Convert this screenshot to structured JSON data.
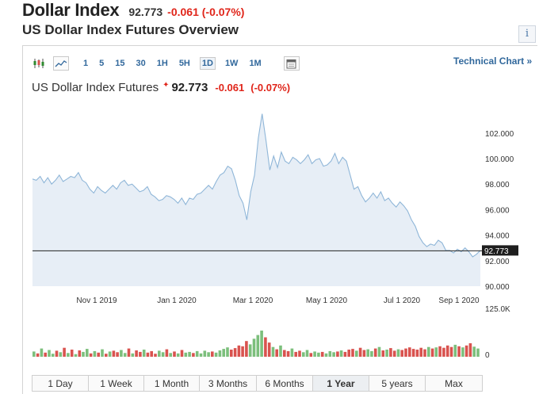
{
  "header": {
    "title": "Dollar Index",
    "price": "92.773",
    "change": "-0.061 (-0.07%)"
  },
  "overview_title": "US Dollar Index Futures Overview",
  "info_icon": {
    "glyph": "i",
    "icon": "info-icon"
  },
  "toolbar": {
    "chart_type_icons": [
      "candlestick-icon",
      "line-chart-icon"
    ],
    "ranges": [
      {
        "label": "1",
        "active": false
      },
      {
        "label": "5",
        "active": false
      },
      {
        "label": "15",
        "active": false
      },
      {
        "label": "30",
        "active": false
      },
      {
        "label": "1H",
        "active": false
      },
      {
        "label": "5H",
        "active": false
      },
      {
        "label": "1D",
        "active": true
      },
      {
        "label": "1W",
        "active": false
      },
      {
        "label": "1M",
        "active": false
      }
    ],
    "calendar_icon": "calendar-icon",
    "technical_chart_link": "Technical Chart »"
  },
  "chart_title": {
    "name": "US Dollar Index Futures",
    "marker": "✦",
    "price": "92.773",
    "change": "-0.061",
    "change_pct": "(-0.07%)"
  },
  "colors": {
    "line": "#8fb6d8",
    "area": "#e7eef6",
    "price_tag_bg": "#1e1e1e",
    "volume_up": "#7cbf7c",
    "volume_down": "#d9534f",
    "negative": "#e0251a",
    "link": "#31689c"
  },
  "chart_data": {
    "type": "area",
    "title": "US Dollar Index Futures",
    "xlabel": "",
    "ylabel": "",
    "x_tick_labels": [
      "Nov 1 2019",
      "Jan 1 2020",
      "Mar 1 2020",
      "May 1 2020",
      "Jul 1 2020",
      "Sep 1 2020"
    ],
    "y_tick_labels": [
      "102.000",
      "100.000",
      "98.000",
      "96.000",
      "94.000",
      "92.000",
      "90.000"
    ],
    "ylim": [
      90,
      103.85
    ],
    "last_price": 92.773,
    "last_price_label": "92.773",
    "grid": false,
    "legend": "none",
    "series": [
      {
        "values": [
          98.4,
          98.3,
          98.6,
          98.1,
          98.5,
          98.0,
          98.3,
          98.7,
          98.2,
          98.4,
          98.6,
          98.5,
          98.9,
          98.3,
          98.1,
          97.6,
          97.3,
          97.8,
          97.5,
          97.3,
          97.6,
          97.9,
          97.6,
          98.1,
          98.3,
          97.9,
          98.0,
          97.7,
          97.4,
          97.5,
          97.8,
          97.2,
          97.0,
          96.7,
          96.8,
          97.1,
          97.0,
          96.8,
          96.5,
          96.9,
          96.4,
          96.9,
          96.8,
          97.2,
          97.3,
          97.6,
          97.9,
          97.6,
          98.2,
          98.7,
          98.9,
          99.4,
          99.2,
          98.3,
          97.1,
          96.5,
          95.2,
          97.4,
          98.7,
          101.6,
          103.5,
          101.4,
          99.1,
          100.2,
          99.3,
          100.5,
          99.8,
          99.6,
          100.1,
          99.9,
          99.6,
          99.9,
          100.3,
          99.6,
          99.9,
          100.0,
          99.4,
          99.5,
          99.8,
          100.4,
          99.6,
          100.1,
          99.8,
          98.7,
          97.6,
          97.8,
          97.1,
          96.6,
          96.9,
          97.3,
          96.9,
          97.4,
          96.7,
          96.9,
          96.5,
          96.2,
          96.6,
          96.3,
          95.9,
          95.2,
          94.7,
          93.9,
          93.4,
          93.1,
          93.3,
          93.2,
          93.6,
          93.4,
          92.8,
          92.8,
          92.6,
          92.9,
          92.7,
          93.0,
          92.7,
          92.3,
          92.5,
          92.8
        ]
      }
    ],
    "volume": {
      "ylim": [
        0,
        125000
      ],
      "y_tick_labels": [
        "125.0K",
        "0"
      ],
      "values": [
        14000,
        9000,
        22000,
        11000,
        18000,
        8000,
        16000,
        12000,
        24000,
        10000,
        19000,
        7000,
        17000,
        13000,
        21000,
        9000,
        15000,
        11000,
        20000,
        8000,
        14000,
        16000,
        12000,
        18000,
        10000,
        22000,
        9000,
        17000,
        13000,
        19000,
        11000,
        15000,
        8000,
        16000,
        12000,
        20000,
        10000,
        14000,
        9000,
        18000,
        11000,
        13000,
        10000,
        15000,
        9000,
        16000,
        12000,
        14000,
        11000,
        17000,
        21000,
        25000,
        19000,
        23000,
        30000,
        28000,
        42000,
        33000,
        48000,
        58000,
        70000,
        52000,
        38000,
        26000,
        20000,
        30000,
        18000,
        15000,
        22000,
        13000,
        16000,
        12000,
        18000,
        10000,
        14000,
        11000,
        13000,
        9000,
        15000,
        12000,
        14000,
        17000,
        13000,
        19000,
        21000,
        16000,
        24000,
        18000,
        20000,
        15000,
        22000,
        26000,
        17000,
        19000,
        23000,
        16000,
        20000,
        18000,
        22000,
        25000,
        21000,
        19000,
        24000,
        20000,
        26000,
        22000,
        25000,
        28000,
        24000,
        30000,
        26000,
        32000,
        28000,
        25000,
        30000,
        36000,
        27000,
        22000
      ],
      "directions": [
        "up",
        "down",
        "up",
        "down",
        "up",
        "up",
        "down",
        "up",
        "down",
        "up",
        "down",
        "up",
        "down",
        "up",
        "up",
        "down",
        "up",
        "down",
        "up",
        "down",
        "up",
        "down",
        "down",
        "up",
        "up",
        "down",
        "up",
        "down",
        "down",
        "up",
        "down",
        "down",
        "down",
        "up",
        "up",
        "down",
        "up",
        "down",
        "up",
        "down",
        "up",
        "up",
        "down",
        "up",
        "up",
        "up",
        "up",
        "down",
        "up",
        "up",
        "up",
        "up",
        "down",
        "down",
        "down",
        "down",
        "down",
        "up",
        "up",
        "up",
        "up",
        "down",
        "down",
        "up",
        "down",
        "up",
        "down",
        "down",
        "up",
        "down",
        "down",
        "up",
        "up",
        "down",
        "up",
        "up",
        "down",
        "up",
        "up",
        "up",
        "down",
        "up",
        "down",
        "down",
        "down",
        "up",
        "down",
        "down",
        "up",
        "up",
        "down",
        "up",
        "down",
        "up",
        "down",
        "down",
        "up",
        "down",
        "down",
        "down",
        "down",
        "down",
        "down",
        "down",
        "up",
        "down",
        "up",
        "down",
        "down",
        "down",
        "down",
        "up",
        "down",
        "up",
        "down",
        "down",
        "up",
        "up"
      ]
    }
  },
  "range_tabs": [
    {
      "label": "1 Day",
      "active": false
    },
    {
      "label": "1 Week",
      "active": false
    },
    {
      "label": "1 Month",
      "active": false
    },
    {
      "label": "3 Months",
      "active": false
    },
    {
      "label": "6 Months",
      "active": false
    },
    {
      "label": "1 Year",
      "active": true
    },
    {
      "label": "5 years",
      "active": false
    },
    {
      "label": "Max",
      "active": false
    }
  ]
}
